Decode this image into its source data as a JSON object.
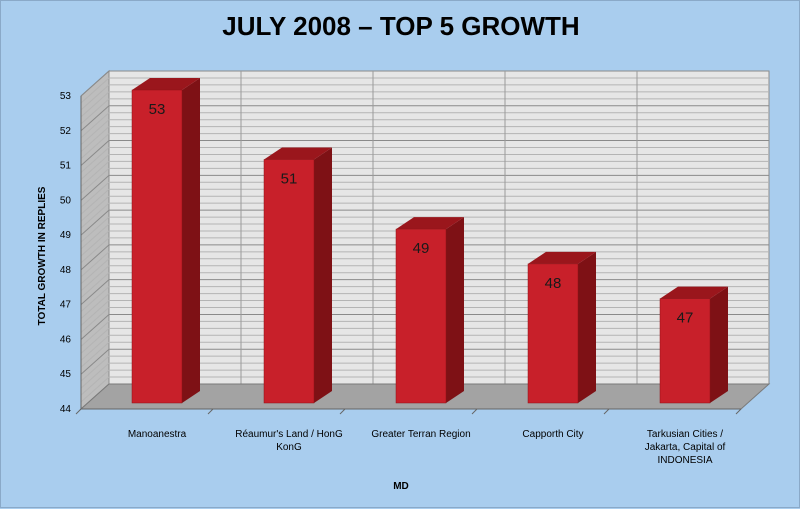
{
  "chart_data": {
    "type": "bar",
    "title": "JULY 2008 – TOP 5 GROWTH",
    "xlabel": "MD",
    "ylabel": "TOTAL GROWTH IN REPLIES",
    "categories": [
      [
        "Manoanestra"
      ],
      [
        "Réaumur's Land / HonG",
        "KonG"
      ],
      [
        "Greater Terran Region"
      ],
      [
        "Capporth City"
      ],
      [
        "Tarkusian Cities /",
        "Jakarta, Capital of",
        "INDONESIA"
      ]
    ],
    "values": [
      53,
      51,
      49,
      48,
      47
    ],
    "data_labels": [
      "53",
      "51",
      "49",
      "48",
      "47"
    ],
    "ylim": [
      44,
      53
    ],
    "yticks": [
      "44",
      "45",
      "46",
      "47",
      "48",
      "49",
      "50",
      "51",
      "52",
      "53"
    ],
    "grid": true,
    "bar_color": "#c8202a",
    "bar_side_color": "#7e1115",
    "bar_top_color": "#9a161c",
    "wall_color": "#e6e6e6",
    "floor_color": "#a3a3a3"
  }
}
